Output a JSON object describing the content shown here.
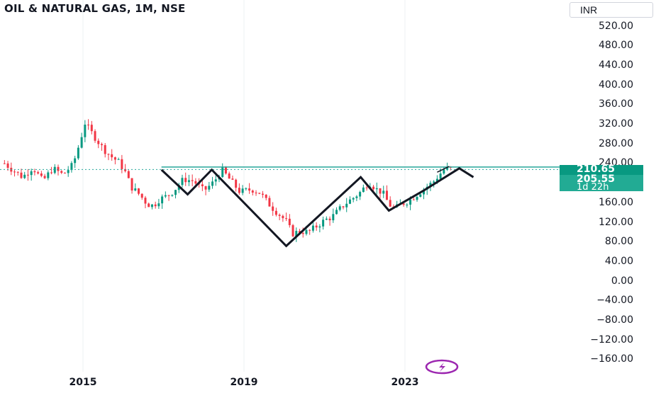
{
  "header": {
    "title": "OIL & NATURAL GAS, 1M, NSE",
    "currency": "INR"
  },
  "price_badges": {
    "current_price": "210.65",
    "last_close": "205.55",
    "time_to_close": "1d 22h"
  },
  "colors": {
    "up": "#089981",
    "down": "#f23645",
    "neckline": "#26a69a",
    "pattern": "#131722",
    "grid": "#eef0f3",
    "badge": "#089981",
    "logo": "#9c27b0"
  },
  "icons": {
    "logo": "lightning-bolt-icon"
  },
  "chart_data": {
    "type": "candlestick",
    "title": "OIL & NATURAL GAS, 1M, NSE",
    "x_tick_labels": [
      "2015",
      "2019",
      "2023"
    ],
    "y_tick_labels": [
      "520.00",
      "480.00",
      "440.00",
      "400.00",
      "360.00",
      "320.00",
      "280.00",
      "240.00",
      "160.00",
      "120.00",
      "80.00",
      "40.00",
      "0.00",
      "−40.00",
      "−80.00",
      "−120.00",
      "−160.00"
    ],
    "y_range": [
      -175,
      555
    ],
    "x_range": [
      2013.0,
      2025.6
    ],
    "grid": true,
    "series": [
      {
        "kind": "monthly_close",
        "points": [
          [
            2013.05,
            218
          ],
          [
            2013.25,
            205
          ],
          [
            2013.5,
            190
          ],
          [
            2013.75,
            210
          ],
          [
            2014.0,
            182
          ],
          [
            2014.25,
            208
          ],
          [
            2014.5,
            195
          ],
          [
            2014.75,
            215
          ],
          [
            2014.9,
            255
          ],
          [
            2015.05,
            300
          ],
          [
            2015.2,
            282
          ],
          [
            2015.35,
            265
          ],
          [
            2015.5,
            248
          ],
          [
            2015.7,
            232
          ],
          [
            2015.9,
            220
          ],
          [
            2016.05,
            200
          ],
          [
            2016.2,
            170
          ],
          [
            2016.4,
            155
          ],
          [
            2016.6,
            135
          ],
          [
            2016.75,
            132
          ],
          [
            2016.9,
            145
          ],
          [
            2017.1,
            152
          ],
          [
            2017.25,
            162
          ],
          [
            2017.5,
            186
          ],
          [
            2017.75,
            182
          ],
          [
            2018.0,
            162
          ],
          [
            2018.25,
            180
          ],
          [
            2018.45,
            205
          ],
          [
            2018.65,
            185
          ],
          [
            2018.9,
            160
          ],
          [
            2019.2,
            165
          ],
          [
            2019.4,
            158
          ],
          [
            2019.55,
            142
          ],
          [
            2019.7,
            128
          ],
          [
            2019.9,
            112
          ],
          [
            2020.05,
            100
          ],
          [
            2020.2,
            75
          ],
          [
            2020.4,
            80
          ],
          [
            2020.6,
            78
          ],
          [
            2020.8,
            90
          ],
          [
            2021.0,
            102
          ],
          [
            2021.2,
            110
          ],
          [
            2021.5,
            135
          ],
          [
            2021.75,
            150
          ],
          [
            2021.9,
            160
          ],
          [
            2022.1,
            180
          ],
          [
            2022.3,
            165
          ],
          [
            2022.45,
            158
          ],
          [
            2022.6,
            135
          ],
          [
            2022.75,
            125
          ],
          [
            2022.9,
            135
          ],
          [
            2023.1,
            142
          ],
          [
            2023.3,
            155
          ],
          [
            2023.5,
            168
          ],
          [
            2023.7,
            180
          ],
          [
            2023.85,
            195
          ],
          [
            2024.0,
            208
          ],
          [
            2024.15,
            205.55
          ]
        ]
      }
    ],
    "overlays": {
      "neckline": {
        "value": 210.65
      },
      "pattern_path": [
        [
          2016.95,
          205
        ],
        [
          2017.6,
          155
        ],
        [
          2018.2,
          205
        ],
        [
          2020.05,
          50
        ],
        [
          2021.9,
          190
        ],
        [
          2022.6,
          122
        ],
        [
          2023.45,
          162
        ],
        [
          2024.35,
          208
        ],
        [
          2024.7,
          190
        ]
      ],
      "small_arrow": [
        [
          2023.8,
          200
        ],
        [
          2024.1,
          212
        ]
      ]
    }
  }
}
